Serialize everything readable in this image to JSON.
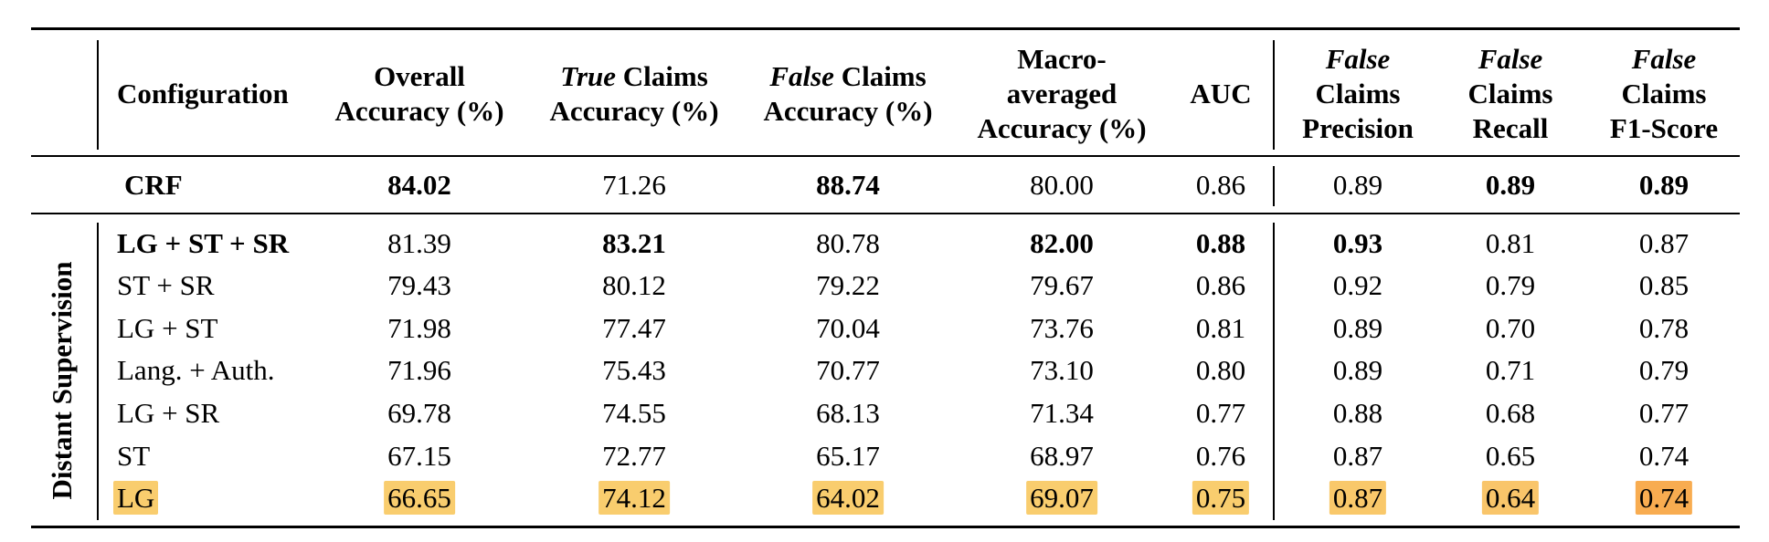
{
  "headers": {
    "configuration": "Configuration",
    "overall": [
      "Overall",
      "Accuracy (%)"
    ],
    "true_acc": {
      "italic": "True",
      "rest": " Claims",
      "line2": "Accuracy (%)"
    },
    "false_acc": {
      "italic": "False",
      "rest": " Claims",
      "line2": "Accuracy (%)"
    },
    "macro": [
      "Macro-",
      "averaged",
      "Accuracy (%)"
    ],
    "auc": "AUC",
    "precision": {
      "italic": "False",
      "line2": "Claims",
      "line3": "Precision"
    },
    "recall": {
      "italic": "False",
      "line2": "Claims",
      "line3": "Recall"
    },
    "f1": {
      "italic": "False",
      "line2": "Claims",
      "line3": "F1-Score"
    }
  },
  "group_label": "Distant Supervision",
  "crf_row": {
    "config": "CRF",
    "values": [
      "84.02",
      "71.26",
      "88.74",
      "80.00",
      "0.86",
      "0.89",
      "0.89",
      "0.89"
    ],
    "bold": [
      true,
      false,
      true,
      false,
      false,
      false,
      true,
      true
    ]
  },
  "rows": [
    {
      "config": "LG + ST + SR",
      "config_bold": true,
      "values": [
        "81.39",
        "83.21",
        "80.78",
        "82.00",
        "0.88",
        "0.93",
        "0.81",
        "0.87"
      ],
      "bold": [
        false,
        true,
        false,
        true,
        true,
        true,
        false,
        false
      ]
    },
    {
      "config": "ST + SR",
      "config_bold": false,
      "values": [
        "79.43",
        "80.12",
        "79.22",
        "79.67",
        "0.86",
        "0.92",
        "0.79",
        "0.85"
      ],
      "bold": [
        false,
        false,
        false,
        false,
        false,
        false,
        false,
        false
      ]
    },
    {
      "config": "LG + ST",
      "config_bold": false,
      "values": [
        "71.98",
        "77.47",
        "70.04",
        "73.76",
        "0.81",
        "0.89",
        "0.70",
        "0.78"
      ],
      "bold": [
        false,
        false,
        false,
        false,
        false,
        false,
        false,
        false
      ]
    },
    {
      "config": "Lang. + Auth.",
      "config_bold": false,
      "values": [
        "71.96",
        "75.43",
        "70.77",
        "73.10",
        "0.80",
        "0.89",
        "0.71",
        "0.79"
      ],
      "bold": [
        false,
        false,
        false,
        false,
        false,
        false,
        false,
        false
      ]
    },
    {
      "config": "LG + SR",
      "config_bold": false,
      "values": [
        "69.78",
        "74.55",
        "68.13",
        "71.34",
        "0.77",
        "0.88",
        "0.68",
        "0.77"
      ],
      "bold": [
        false,
        false,
        false,
        false,
        false,
        false,
        false,
        false
      ]
    },
    {
      "config": "ST",
      "config_bold": false,
      "values": [
        "67.15",
        "72.77",
        "65.17",
        "68.97",
        "0.76",
        "0.87",
        "0.65",
        "0.74"
      ],
      "bold": [
        false,
        false,
        false,
        false,
        false,
        false,
        false,
        false
      ]
    },
    {
      "config": "LG",
      "config_bold": false,
      "highlight": true,
      "values": [
        "66.65",
        "74.12",
        "64.02",
        "69.07",
        "0.75",
        "0.87",
        "0.64",
        "0.74"
      ],
      "bold": [
        false,
        false,
        false,
        false,
        false,
        false,
        false,
        false
      ]
    }
  ],
  "highlight_colors": {
    "config": "#f9cd6e",
    "values": [
      "#f9cd6e",
      "#f9cd6e",
      "#f9cd6e",
      "#f9cd6e",
      "#f9cd6e",
      "#f9c86a",
      "#f9c56a",
      "#f8ac50"
    ]
  }
}
